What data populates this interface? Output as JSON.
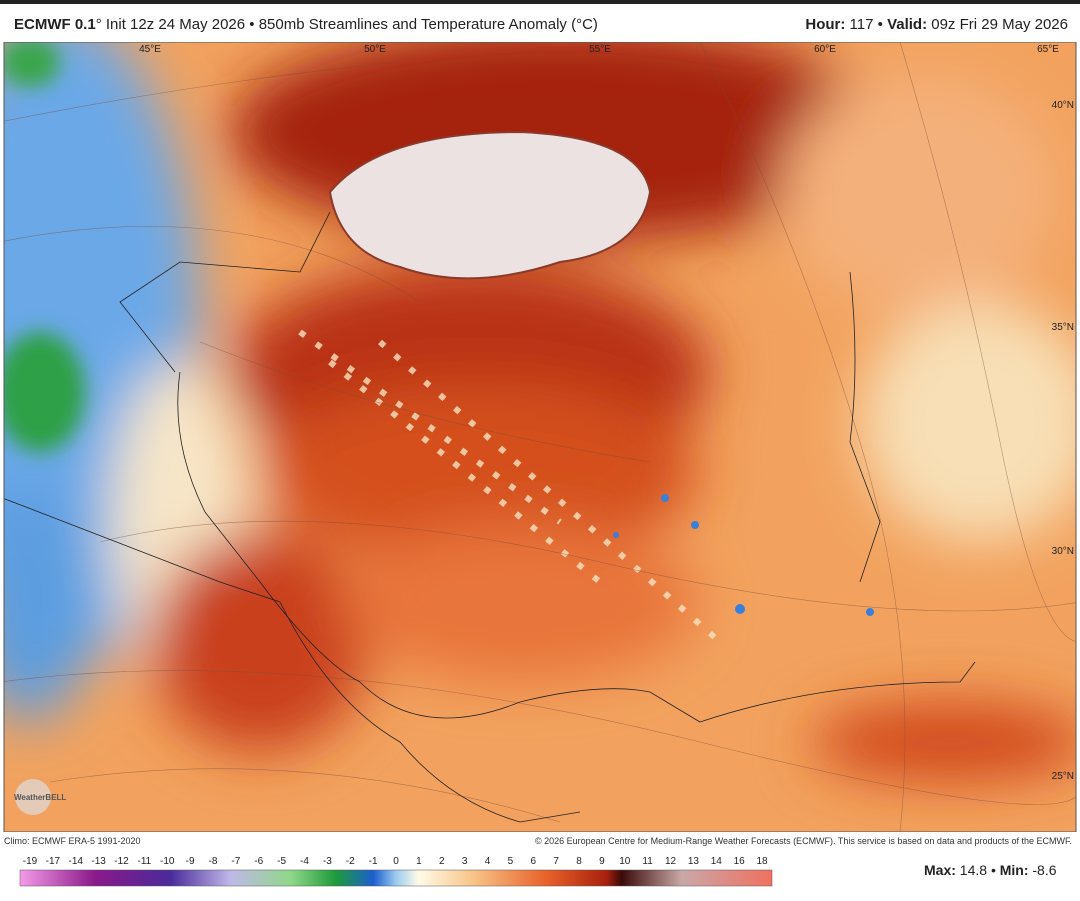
{
  "header": {
    "model": "ECMWF 0.1",
    "rest": "° Init 12z 24 May 2026 • 850mb Streamlines and Temperature Anomaly (°C)",
    "hour_label": "Hour:",
    "hour": "117",
    "sep": "•",
    "valid_label": "Valid:",
    "valid": "09z Fri 29 May 2026"
  },
  "map": {
    "lon_labels": [
      "45°E",
      "50°E",
      "55°E",
      "60°E",
      "65°E"
    ],
    "lat_labels": [
      "40°N",
      "35°N",
      "30°N",
      "25°N"
    ],
    "logo": "WeatherBELL"
  },
  "footer": {
    "climo": "Climo: ECMWF ERA-5 1991-2020",
    "copyright": "© 2026 European Centre for Medium-Range Weather Forecasts (ECMWF). This service is based on data and products of the ECMWF."
  },
  "colorbar": {
    "labels": [
      -19,
      -17,
      -14,
      -13,
      -12,
      -11,
      -10,
      -9,
      -8,
      -7,
      -6,
      -5,
      -4,
      -3,
      -2,
      -1,
      0,
      1,
      2,
      3,
      4,
      5,
      6,
      7,
      8,
      9,
      10,
      11,
      12,
      13,
      14,
      16,
      18
    ]
  },
  "stats": {
    "max_label": "Max:",
    "max": 14.8,
    "sep": "•",
    "min_label": "Min:",
    "min": -8.6
  }
}
